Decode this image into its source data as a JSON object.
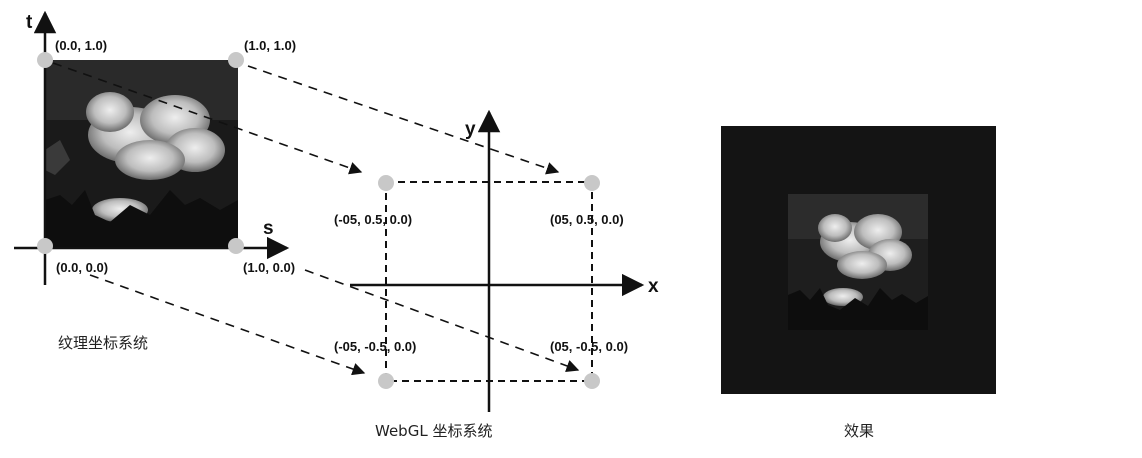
{
  "texture_panel": {
    "axis_t": "t",
    "axis_s": "s",
    "corner_top_left": "(0.0, 1.0)",
    "corner_top_right": "(1.0, 1.0)",
    "corner_bottom_left": "(0.0, 0.0)",
    "corner_bottom_right": "(1.0, 0.0)",
    "caption": "纹理坐标系统"
  },
  "webgl_panel": {
    "axis_x": "x",
    "axis_y": "y",
    "corner_top_left": "(-05, 0.5, 0.0)",
    "corner_top_right": "(05, 0.5, 0.0)",
    "corner_bottom_left": "(-05, -0.5, 0.0)",
    "corner_bottom_right": "(05, -0.5, 0.0)",
    "caption": "WebGL 坐标系统"
  },
  "result_panel": {
    "caption": "效果"
  },
  "colors": {
    "line": "#111111",
    "vertex_dot": "#c8c8c8",
    "image_background": "#141414",
    "sky": "#2c2c2c",
    "cloud": "#d9d9d9",
    "trees": "#0d0d0d"
  }
}
